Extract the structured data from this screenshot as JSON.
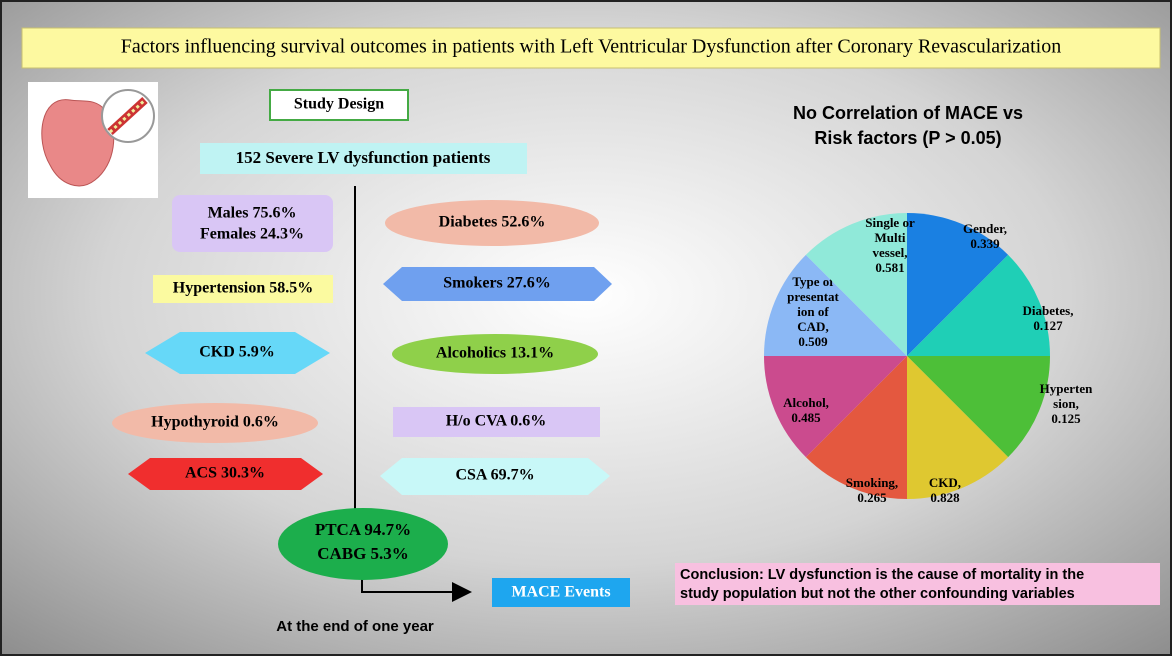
{
  "title": "Factors influencing survival outcomes in patients with Left Ventricular Dysfunction after Coronary Revascularization",
  "study_design": "Study Design",
  "patients": "152 Severe LV dysfunction patients",
  "factors": {
    "sex": [
      "Males 75.6%",
      "Females 24.3%"
    ],
    "diabetes": "Diabetes 52.6%",
    "hypertension": "Hypertension 58.5%",
    "smokers": "Smokers 27.6%",
    "ckd": "CKD 5.9%",
    "alcoholics": "Alcoholics 13.1%",
    "hypothyroid": "Hypothyroid 0.6%",
    "cva": "H/o CVA 0.6%",
    "acs": "ACS 30.3%",
    "csa": "CSA 69.7%"
  },
  "procedure": [
    "PTCA 94.7%",
    "CABG 5.3%"
  ],
  "outcome": "MACE Events",
  "followup": "At the end of one year",
  "pie": {
    "title": [
      "No Correlation of MACE vs",
      "Risk factors (P > 0.05)"
    ],
    "slices": [
      {
        "label": [
          "Gender,"
        ],
        "value": 0.339,
        "color": "#1a80e2"
      },
      {
        "label": [
          "Diabetes,"
        ],
        "value": 0.127,
        "color": "#1fcfb6"
      },
      {
        "label": [
          "Hyperten",
          "sion,"
        ],
        "value": 0.125,
        "color": "#4dbf38"
      },
      {
        "label": [
          "CKD,"
        ],
        "value": 0.828,
        "color": "#dfc830"
      },
      {
        "label": [
          "Smoking,"
        ],
        "value": 0.265,
        "color": "#e4583f"
      },
      {
        "label": [
          "Alcohol,"
        ],
        "value": 0.485,
        "color": "#cb4b8e"
      },
      {
        "label": [
          "Type of",
          "presentat",
          "ion of",
          "CAD,"
        ],
        "value": 0.509,
        "color": "#8bb8f5"
      },
      {
        "label": [
          "Single or",
          "Multi",
          "vessel,"
        ],
        "value": 0.581,
        "color": "#90e9d9"
      }
    ]
  },
  "conclusion": [
    "Conclusion: LV dysfunction is the cause of mortality in the",
    "study population but not the other confounding variables"
  ]
}
